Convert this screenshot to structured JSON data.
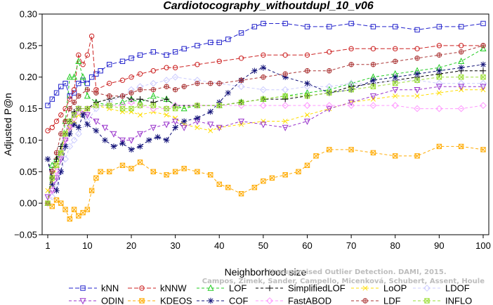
{
  "chart_data": {
    "type": "line",
    "title": "Cardiotocography_withoutdupl_10_v06",
    "xlabel": "Neighborhood size",
    "ylabel": "Adjusted P@n",
    "xlim": [
      1,
      100
    ],
    "ylim": [
      -0.05,
      0.3
    ],
    "xticks": [
      "1",
      "10",
      "20",
      "30",
      "40",
      "50",
      "60",
      "70",
      "80",
      "90",
      "100"
    ],
    "yticks": [
      "−0.05",
      "0.00",
      "0.05",
      "0.10",
      "0.15",
      "0.20",
      "0.25",
      "0.30"
    ],
    "grid": false,
    "legend_position": "bottom",
    "watermark_lines": [
      "Unsupervised Outlier Detection. DAMI, 2015.",
      "Campos, Zimek, Sander, Campello, Micenková, Schubert, Assent, Houle"
    ],
    "series": [
      {
        "name": "kNN",
        "color": "#2222cc",
        "marker": "square",
        "dash": "6,3",
        "x": [
          1,
          2,
          3,
          4,
          5,
          6,
          7,
          8,
          9,
          10,
          11,
          12,
          13,
          15,
          18,
          20,
          22,
          25,
          28,
          30,
          32,
          35,
          38,
          40,
          42,
          45,
          48,
          50,
          55,
          60,
          65,
          70,
          75,
          80,
          85,
          90,
          95,
          100
        ],
        "values": [
          0.155,
          0.165,
          0.175,
          0.185,
          0.19,
          0.17,
          0.175,
          0.19,
          0.195,
          0.19,
          0.2,
          0.205,
          0.21,
          0.22,
          0.225,
          0.23,
          0.235,
          0.24,
          0.235,
          0.24,
          0.245,
          0.25,
          0.255,
          0.255,
          0.26,
          0.27,
          0.28,
          0.285,
          0.285,
          0.28,
          0.28,
          0.285,
          0.28,
          0.28,
          0.275,
          0.28,
          0.28,
          0.285
        ]
      },
      {
        "name": "kNNW",
        "color": "#cc2222",
        "marker": "circle",
        "dash": "6,3",
        "x": [
          1,
          2,
          3,
          4,
          5,
          6,
          7,
          8,
          9,
          10,
          11,
          12,
          15,
          18,
          20,
          22,
          25,
          28,
          30,
          35,
          40,
          45,
          50,
          55,
          60,
          65,
          70,
          75,
          80,
          85,
          90,
          95,
          100
        ],
        "values": [
          0.115,
          0.12,
          0.13,
          0.14,
          0.15,
          0.165,
          0.18,
          0.235,
          0.22,
          0.235,
          0.265,
          0.18,
          0.19,
          0.195,
          0.2,
          0.205,
          0.21,
          0.215,
          0.215,
          0.22,
          0.225,
          0.23,
          0.235,
          0.235,
          0.235,
          0.24,
          0.245,
          0.245,
          0.245,
          0.245,
          0.25,
          0.25,
          0.25
        ]
      },
      {
        "name": "LOF",
        "color": "#22cc22",
        "marker": "triangle",
        "dash": "4,3",
        "x": [
          1,
          2,
          3,
          4,
          5,
          6,
          7,
          8,
          9,
          10,
          12,
          15,
          18,
          20,
          22,
          25,
          28,
          30,
          32,
          35,
          40,
          45,
          50,
          55,
          60,
          65,
          70,
          75,
          80,
          85,
          90,
          95,
          100
        ],
        "values": [
          0.0,
          0.06,
          0.07,
          0.08,
          0.13,
          0.2,
          0.2,
          0.225,
          0.2,
          0.17,
          0.16,
          0.155,
          0.16,
          0.165,
          0.16,
          0.17,
          0.165,
          0.155,
          0.15,
          0.155,
          0.155,
          0.16,
          0.165,
          0.17,
          0.175,
          0.18,
          0.19,
          0.2,
          0.205,
          0.21,
          0.215,
          0.225,
          0.245
        ]
      },
      {
        "name": "SimplifiedLOF",
        "color": "#000000",
        "marker": "plus",
        "dash": "4,3",
        "x": [
          1,
          2,
          3,
          4,
          5,
          6,
          7,
          8,
          9,
          10,
          12,
          15,
          18,
          20,
          22,
          25,
          28,
          30,
          35,
          40,
          45,
          50,
          55,
          60,
          65,
          70,
          75,
          80,
          85,
          90,
          95,
          100
        ],
        "values": [
          0.07,
          0.04,
          0.07,
          0.09,
          0.11,
          0.13,
          0.145,
          0.15,
          0.14,
          0.15,
          0.16,
          0.165,
          0.17,
          0.165,
          0.165,
          0.16,
          0.165,
          0.155,
          0.155,
          0.155,
          0.16,
          0.165,
          0.165,
          0.17,
          0.175,
          0.185,
          0.19,
          0.195,
          0.2,
          0.205,
          0.21,
          0.21
        ]
      },
      {
        "name": "LoOP",
        "color": "#ffdd00",
        "marker": "x",
        "dash": "4,3",
        "x": [
          1,
          2,
          3,
          4,
          5,
          6,
          7,
          8,
          10,
          12,
          15,
          18,
          20,
          22,
          25,
          28,
          30,
          32,
          35,
          38,
          40,
          45,
          50,
          55,
          60,
          65,
          70,
          75,
          80,
          85,
          90,
          95,
          100
        ],
        "values": [
          0.02,
          0.03,
          0.06,
          0.08,
          0.11,
          0.12,
          0.13,
          0.14,
          0.15,
          0.155,
          0.15,
          0.145,
          0.145,
          0.14,
          0.145,
          0.14,
          0.135,
          0.125,
          0.12,
          0.115,
          0.12,
          0.125,
          0.13,
          0.13,
          0.14,
          0.15,
          0.16,
          0.165,
          0.17,
          0.17,
          0.175,
          0.18,
          0.18
        ]
      },
      {
        "name": "LDOF",
        "color": "#ccccff",
        "marker": "diamond",
        "dash": "4,3",
        "x": [
          1,
          2,
          3,
          4,
          5,
          6,
          7,
          8,
          10,
          12,
          15,
          18,
          20,
          22,
          25,
          28,
          30,
          35,
          40,
          45,
          50,
          55,
          60,
          65,
          70,
          75,
          80,
          85,
          90,
          95,
          100
        ],
        "values": [
          0.0,
          0.01,
          0.03,
          0.05,
          0.07,
          0.09,
          0.1,
          0.11,
          0.13,
          0.15,
          0.16,
          0.17,
          0.18,
          0.185,
          0.19,
          0.195,
          0.2,
          0.195,
          0.19,
          0.185,
          0.18,
          0.18,
          0.185,
          0.185,
          0.19,
          0.19,
          0.195,
          0.195,
          0.19,
          0.19,
          0.19
        ]
      },
      {
        "name": "ODIN",
        "color": "#9933cc",
        "marker": "triangle-down",
        "dash": "4,3",
        "x": [
          1,
          2,
          3,
          4,
          5,
          6,
          7,
          8,
          10,
          12,
          14,
          16,
          18,
          20,
          22,
          25,
          28,
          30,
          32,
          35,
          38,
          40,
          45,
          50,
          55,
          60,
          65,
          70,
          75,
          80,
          85,
          90,
          95,
          100
        ],
        "values": [
          0.01,
          0.02,
          0.04,
          0.07,
          0.1,
          0.12,
          0.14,
          0.15,
          0.14,
          0.13,
          0.12,
          0.11,
          0.1,
          0.1,
          0.11,
          0.12,
          0.125,
          0.13,
          0.12,
          0.13,
          0.125,
          0.12,
          0.13,
          0.125,
          0.12,
          0.13,
          0.15,
          0.16,
          0.17,
          0.18,
          0.18,
          0.185,
          0.185,
          0.185
        ]
      },
      {
        "name": "KDEOS",
        "color": "#ffaa00",
        "marker": "square-x",
        "dash": "4,3",
        "x": [
          1,
          2,
          3,
          4,
          5,
          6,
          7,
          8,
          9,
          10,
          11,
          12,
          13,
          15,
          18,
          20,
          22,
          25,
          28,
          30,
          32,
          35,
          38,
          40,
          42,
          45,
          48,
          50,
          52,
          55,
          58,
          60,
          62,
          65,
          70,
          75,
          80,
          85,
          90,
          95,
          100
        ],
        "values": [
          0.0,
          -0.005,
          0.005,
          0.0,
          -0.01,
          -0.025,
          -0.01,
          -0.02,
          -0.015,
          -0.01,
          0.02,
          0.04,
          0.05,
          0.05,
          0.06,
          0.055,
          0.065,
          0.05,
          0.045,
          0.05,
          0.055,
          0.05,
          0.045,
          0.03,
          0.025,
          0.015,
          0.025,
          0.035,
          0.04,
          0.045,
          0.05,
          0.06,
          0.075,
          0.085,
          0.085,
          0.08,
          0.075,
          0.075,
          0.09,
          0.09,
          0.085
        ]
      },
      {
        "name": "COF",
        "color": "#111177",
        "marker": "star",
        "dash": "4,3",
        "x": [
          1,
          2,
          3,
          4,
          5,
          6,
          7,
          8,
          9,
          10,
          12,
          14,
          16,
          18,
          20,
          22,
          24,
          26,
          28,
          30,
          32,
          35,
          38,
          40,
          42,
          45,
          48,
          50,
          55,
          60,
          65,
          70,
          75,
          80,
          85,
          90,
          95,
          100
        ],
        "values": [
          0.07,
          0.03,
          0.02,
          0.05,
          0.09,
          0.11,
          0.125,
          0.12,
          0.14,
          0.125,
          0.115,
          0.1,
          0.09,
          0.095,
          0.085,
          0.09,
          0.1,
          0.105,
          0.1,
          0.12,
          0.13,
          0.135,
          0.145,
          0.16,
          0.175,
          0.195,
          0.21,
          0.215,
          0.2,
          0.19,
          0.175,
          0.18,
          0.195,
          0.2,
          0.205,
          0.21,
          0.215,
          0.22
        ]
      },
      {
        "name": "FastABOD",
        "color": "#ff99ff",
        "marker": "diamond",
        "dash": "4,3",
        "x": [
          1,
          2,
          3,
          4,
          5,
          6,
          7,
          8,
          10,
          12,
          15,
          18,
          20,
          22,
          25,
          28,
          30,
          35,
          40,
          45,
          50,
          55,
          60,
          65,
          70,
          75,
          80,
          85,
          90,
          95,
          100
        ],
        "values": [
          0.0,
          0.02,
          0.05,
          0.08,
          0.1,
          0.12,
          0.135,
          0.145,
          0.15,
          0.155,
          0.155,
          0.155,
          0.16,
          0.155,
          0.15,
          0.15,
          0.155,
          0.155,
          0.155,
          0.155,
          0.155,
          0.155,
          0.155,
          0.155,
          0.155,
          0.155,
          0.155,
          0.15,
          0.15,
          0.15,
          0.155
        ]
      },
      {
        "name": "LDF",
        "color": "#aa3333",
        "marker": "circle-plus",
        "dash": "4,3",
        "x": [
          1,
          2,
          3,
          4,
          5,
          6,
          7,
          8,
          10,
          12,
          15,
          18,
          20,
          22,
          25,
          28,
          30,
          32,
          35,
          38,
          40,
          45,
          50,
          55,
          60,
          65,
          70,
          75,
          80,
          85,
          90,
          95,
          100
        ],
        "values": [
          0.0,
          0.05,
          0.08,
          0.11,
          0.13,
          0.15,
          0.16,
          0.17,
          0.18,
          0.175,
          0.17,
          0.17,
          0.175,
          0.18,
          0.18,
          0.185,
          0.18,
          0.185,
          0.19,
          0.19,
          0.19,
          0.195,
          0.2,
          0.205,
          0.21,
          0.21,
          0.22,
          0.22,
          0.225,
          0.23,
          0.235,
          0.24,
          0.25
        ]
      },
      {
        "name": "INFLO",
        "color": "#99dd33",
        "marker": "square-x",
        "dash": "4,3",
        "x": [
          1,
          2,
          3,
          4,
          5,
          6,
          7,
          8,
          10,
          12,
          15,
          18,
          20,
          22,
          25,
          28,
          30,
          35,
          40,
          45,
          50,
          55,
          60,
          65,
          70,
          75,
          80,
          85,
          90,
          95,
          100
        ],
        "values": [
          0.0,
          0.04,
          0.06,
          0.08,
          0.11,
          0.13,
          0.14,
          0.15,
          0.15,
          0.155,
          0.155,
          0.15,
          0.15,
          0.155,
          0.155,
          0.15,
          0.15,
          0.155,
          0.155,
          0.16,
          0.165,
          0.17,
          0.17,
          0.175,
          0.18,
          0.185,
          0.19,
          0.195,
          0.2,
          0.2,
          0.2
        ]
      }
    ]
  }
}
